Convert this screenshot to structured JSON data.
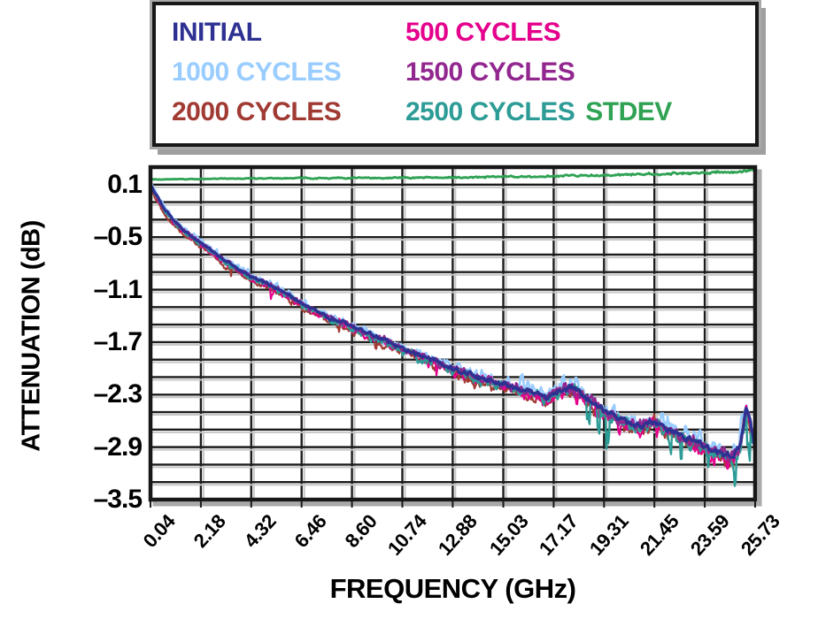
{
  "page": {
    "background": "#ffffff"
  },
  "colors": {
    "navy": "#2e3192",
    "magenta": "#e4008c",
    "lightblue": "#99ccff",
    "purple": "#92278f",
    "darkred": "#a03a33",
    "teal": "#2d9c96",
    "green": "#2fa254",
    "grid": "#1c1c1c",
    "grid_shadow": "#c6c6c6",
    "frame": "#181818",
    "frame_shadow": "#a9a9a9"
  },
  "legend": {
    "rows": [
      [
        {
          "label": "INITIAL",
          "color": "#2e3192"
        },
        {
          "label": "500 CYCLES",
          "color": "#e4008c"
        }
      ],
      [
        {
          "label": "1000 CYCLES",
          "color": "#99ccff"
        },
        {
          "label": "1500 CYCLES",
          "color": "#92278f"
        }
      ],
      [
        {
          "label": "2000 CYCLES",
          "color": "#a03a33"
        },
        {
          "label": "2500 CYCLES",
          "color": "#2d9c96"
        },
        {
          "label": "STDEV",
          "color": "#2fa254"
        }
      ]
    ]
  },
  "chart_data": {
    "type": "line",
    "xlabel": "FREQUENCY (GHz)",
    "ylabel": "ATTENUATION (dB)",
    "xlim": [
      0.04,
      25.73
    ],
    "ylim": [
      -3.5,
      0.3
    ],
    "grid": true,
    "grid_y_step": 0.2,
    "x_ticks": [
      "0.04",
      "2.18",
      "4.32",
      "6.46",
      "8.60",
      "10.74",
      "12.88",
      "15.03",
      "17.17",
      "19.31",
      "21.45",
      "23.59",
      "25.73"
    ],
    "x_tick_values": [
      0.04,
      2.18,
      4.32,
      6.46,
      8.6,
      10.74,
      12.88,
      15.03,
      17.17,
      19.31,
      21.45,
      23.59,
      25.73
    ],
    "y_ticks": [
      "0.1",
      "–0.5",
      "–1.1",
      "–1.7",
      "–2.3",
      "–2.9",
      "–3.5"
    ],
    "y_tick_values": [
      0.1,
      -0.5,
      -1.1,
      -1.7,
      -2.3,
      -2.9,
      -3.5
    ],
    "legend_position": "top",
    "base_anchors": [
      [
        0.04,
        0.1
      ],
      [
        0.3,
        -0.02
      ],
      [
        0.6,
        -0.16
      ],
      [
        1.0,
        -0.3
      ],
      [
        1.5,
        -0.43
      ],
      [
        2.18,
        -0.56
      ],
      [
        3.0,
        -0.73
      ],
      [
        4.32,
        -0.95
      ],
      [
        5.4,
        -1.08
      ],
      [
        6.46,
        -1.25
      ],
      [
        7.5,
        -1.4
      ],
      [
        8.6,
        -1.52
      ],
      [
        9.7,
        -1.65
      ],
      [
        10.74,
        -1.77
      ],
      [
        12.0,
        -1.9
      ],
      [
        12.88,
        -2.0
      ],
      [
        14.0,
        -2.1
      ],
      [
        15.03,
        -2.18
      ],
      [
        16.0,
        -2.26
      ],
      [
        16.8,
        -2.33
      ],
      [
        17.5,
        -2.24
      ],
      [
        18.0,
        -2.22
      ],
      [
        18.5,
        -2.33
      ],
      [
        19.31,
        -2.48
      ],
      [
        20.0,
        -2.58
      ],
      [
        20.7,
        -2.66
      ],
      [
        21.45,
        -2.6
      ],
      [
        22.0,
        -2.7
      ],
      [
        22.8,
        -2.8
      ],
      [
        23.59,
        -2.88
      ],
      [
        24.2,
        -2.96
      ],
      [
        24.8,
        -3.02
      ],
      [
        25.1,
        -2.88
      ],
      [
        25.35,
        -2.45
      ],
      [
        25.55,
        -2.65
      ],
      [
        25.73,
        -2.92
      ]
    ],
    "stdev_anchors": [
      [
        0.04,
        0.16
      ],
      [
        4,
        0.17
      ],
      [
        8,
        0.175
      ],
      [
        12,
        0.18
      ],
      [
        16,
        0.19
      ],
      [
        20,
        0.21
      ],
      [
        23,
        0.23
      ],
      [
        25,
        0.25
      ],
      [
        25.73,
        0.27
      ]
    ],
    "noise_base": 0.025,
    "noise_slope": 0.0035,
    "series": [
      {
        "name": "1000 CYCLES",
        "color": "#99ccff",
        "offset": 0.02,
        "amp": 1.35,
        "seed": 11,
        "width": 2.6,
        "anchors_ref": "base_anchors",
        "spike": {
          "dir": 1,
          "from": 15.5,
          "p": 0.05,
          "mag": 0.2
        }
      },
      {
        "name": "2000 CYCLES",
        "color": "#a03a33",
        "offset": -0.05,
        "amp": 1.15,
        "seed": 22,
        "width": 2.2,
        "anchors_ref": "base_anchors",
        "spike": {
          "dir": -1,
          "from": 3.0,
          "p": 0.02,
          "mag": 0.1
        }
      },
      {
        "name": "500 CYCLES",
        "color": "#e4008c",
        "offset": -0.03,
        "amp": 1.2,
        "seed": 33,
        "width": 2.2,
        "anchors_ref": "base_anchors",
        "spike": {
          "dir": -1,
          "from": 5.0,
          "p": 0.03,
          "mag": 0.14
        }
      },
      {
        "name": "2500 CYCLES",
        "color": "#2d9c96",
        "offset": -0.02,
        "amp": 1.2,
        "seed": 44,
        "width": 2.4,
        "anchors_ref": "base_anchors",
        "spike": {
          "dir": -1,
          "from": 18.5,
          "p": 0.06,
          "mag": 0.5
        }
      },
      {
        "name": "1500 CYCLES",
        "color": "#92278f",
        "offset": 0.0,
        "amp": 1.0,
        "seed": 55,
        "width": 2.4,
        "anchors_ref": "base_anchors",
        "spike": null
      },
      {
        "name": "INITIAL",
        "color": "#2e3192",
        "offset": 0.0,
        "amp": 0.55,
        "seed": 66,
        "width": 3.2,
        "anchors_ref": "base_anchors",
        "spike": null
      },
      {
        "name": "STDEV",
        "color": "#2fa254",
        "offset": 0.0,
        "amp": 0.18,
        "seed": 77,
        "width": 2.8,
        "anchors_ref": "stdev_anchors",
        "spike": null
      }
    ]
  },
  "layout_note": ""
}
